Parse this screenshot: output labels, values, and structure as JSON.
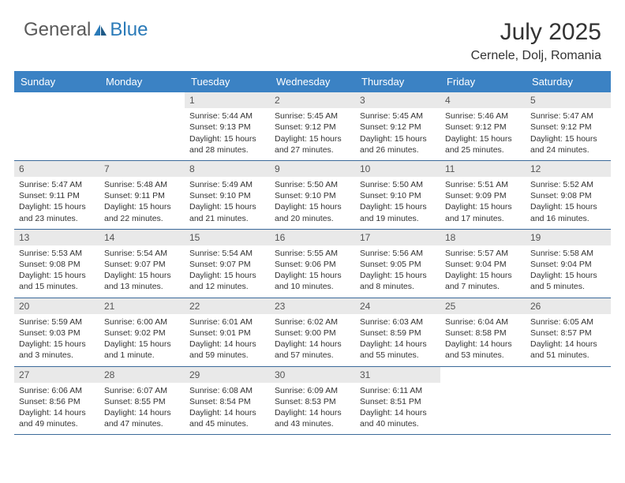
{
  "logo": {
    "general": "General",
    "blue": "Blue"
  },
  "title": "July 2025",
  "location": "Cernele, Dolj, Romania",
  "colors": {
    "header_bg": "#3b82c4",
    "header_text": "#ffffff",
    "daynum_bg": "#e9e9e9",
    "rule": "#3b6a9a",
    "logo_gray": "#5a5a5a",
    "logo_blue": "#2a7ab8"
  },
  "dayNames": [
    "Sunday",
    "Monday",
    "Tuesday",
    "Wednesday",
    "Thursday",
    "Friday",
    "Saturday"
  ],
  "weeks": [
    [
      null,
      null,
      {
        "n": "1",
        "sr": "Sunrise: 5:44 AM",
        "ss": "Sunset: 9:13 PM",
        "dl1": "Daylight: 15 hours",
        "dl2": "and 28 minutes."
      },
      {
        "n": "2",
        "sr": "Sunrise: 5:45 AM",
        "ss": "Sunset: 9:12 PM",
        "dl1": "Daylight: 15 hours",
        "dl2": "and 27 minutes."
      },
      {
        "n": "3",
        "sr": "Sunrise: 5:45 AM",
        "ss": "Sunset: 9:12 PM",
        "dl1": "Daylight: 15 hours",
        "dl2": "and 26 minutes."
      },
      {
        "n": "4",
        "sr": "Sunrise: 5:46 AM",
        "ss": "Sunset: 9:12 PM",
        "dl1": "Daylight: 15 hours",
        "dl2": "and 25 minutes."
      },
      {
        "n": "5",
        "sr": "Sunrise: 5:47 AM",
        "ss": "Sunset: 9:12 PM",
        "dl1": "Daylight: 15 hours",
        "dl2": "and 24 minutes."
      }
    ],
    [
      {
        "n": "6",
        "sr": "Sunrise: 5:47 AM",
        "ss": "Sunset: 9:11 PM",
        "dl1": "Daylight: 15 hours",
        "dl2": "and 23 minutes."
      },
      {
        "n": "7",
        "sr": "Sunrise: 5:48 AM",
        "ss": "Sunset: 9:11 PM",
        "dl1": "Daylight: 15 hours",
        "dl2": "and 22 minutes."
      },
      {
        "n": "8",
        "sr": "Sunrise: 5:49 AM",
        "ss": "Sunset: 9:10 PM",
        "dl1": "Daylight: 15 hours",
        "dl2": "and 21 minutes."
      },
      {
        "n": "9",
        "sr": "Sunrise: 5:50 AM",
        "ss": "Sunset: 9:10 PM",
        "dl1": "Daylight: 15 hours",
        "dl2": "and 20 minutes."
      },
      {
        "n": "10",
        "sr": "Sunrise: 5:50 AM",
        "ss": "Sunset: 9:10 PM",
        "dl1": "Daylight: 15 hours",
        "dl2": "and 19 minutes."
      },
      {
        "n": "11",
        "sr": "Sunrise: 5:51 AM",
        "ss": "Sunset: 9:09 PM",
        "dl1": "Daylight: 15 hours",
        "dl2": "and 17 minutes."
      },
      {
        "n": "12",
        "sr": "Sunrise: 5:52 AM",
        "ss": "Sunset: 9:08 PM",
        "dl1": "Daylight: 15 hours",
        "dl2": "and 16 minutes."
      }
    ],
    [
      {
        "n": "13",
        "sr": "Sunrise: 5:53 AM",
        "ss": "Sunset: 9:08 PM",
        "dl1": "Daylight: 15 hours",
        "dl2": "and 15 minutes."
      },
      {
        "n": "14",
        "sr": "Sunrise: 5:54 AM",
        "ss": "Sunset: 9:07 PM",
        "dl1": "Daylight: 15 hours",
        "dl2": "and 13 minutes."
      },
      {
        "n": "15",
        "sr": "Sunrise: 5:54 AM",
        "ss": "Sunset: 9:07 PM",
        "dl1": "Daylight: 15 hours",
        "dl2": "and 12 minutes."
      },
      {
        "n": "16",
        "sr": "Sunrise: 5:55 AM",
        "ss": "Sunset: 9:06 PM",
        "dl1": "Daylight: 15 hours",
        "dl2": "and 10 minutes."
      },
      {
        "n": "17",
        "sr": "Sunrise: 5:56 AM",
        "ss": "Sunset: 9:05 PM",
        "dl1": "Daylight: 15 hours",
        "dl2": "and 8 minutes."
      },
      {
        "n": "18",
        "sr": "Sunrise: 5:57 AM",
        "ss": "Sunset: 9:04 PM",
        "dl1": "Daylight: 15 hours",
        "dl2": "and 7 minutes."
      },
      {
        "n": "19",
        "sr": "Sunrise: 5:58 AM",
        "ss": "Sunset: 9:04 PM",
        "dl1": "Daylight: 15 hours",
        "dl2": "and 5 minutes."
      }
    ],
    [
      {
        "n": "20",
        "sr": "Sunrise: 5:59 AM",
        "ss": "Sunset: 9:03 PM",
        "dl1": "Daylight: 15 hours",
        "dl2": "and 3 minutes."
      },
      {
        "n": "21",
        "sr": "Sunrise: 6:00 AM",
        "ss": "Sunset: 9:02 PM",
        "dl1": "Daylight: 15 hours",
        "dl2": "and 1 minute."
      },
      {
        "n": "22",
        "sr": "Sunrise: 6:01 AM",
        "ss": "Sunset: 9:01 PM",
        "dl1": "Daylight: 14 hours",
        "dl2": "and 59 minutes."
      },
      {
        "n": "23",
        "sr": "Sunrise: 6:02 AM",
        "ss": "Sunset: 9:00 PM",
        "dl1": "Daylight: 14 hours",
        "dl2": "and 57 minutes."
      },
      {
        "n": "24",
        "sr": "Sunrise: 6:03 AM",
        "ss": "Sunset: 8:59 PM",
        "dl1": "Daylight: 14 hours",
        "dl2": "and 55 minutes."
      },
      {
        "n": "25",
        "sr": "Sunrise: 6:04 AM",
        "ss": "Sunset: 8:58 PM",
        "dl1": "Daylight: 14 hours",
        "dl2": "and 53 minutes."
      },
      {
        "n": "26",
        "sr": "Sunrise: 6:05 AM",
        "ss": "Sunset: 8:57 PM",
        "dl1": "Daylight: 14 hours",
        "dl2": "and 51 minutes."
      }
    ],
    [
      {
        "n": "27",
        "sr": "Sunrise: 6:06 AM",
        "ss": "Sunset: 8:56 PM",
        "dl1": "Daylight: 14 hours",
        "dl2": "and 49 minutes."
      },
      {
        "n": "28",
        "sr": "Sunrise: 6:07 AM",
        "ss": "Sunset: 8:55 PM",
        "dl1": "Daylight: 14 hours",
        "dl2": "and 47 minutes."
      },
      {
        "n": "29",
        "sr": "Sunrise: 6:08 AM",
        "ss": "Sunset: 8:54 PM",
        "dl1": "Daylight: 14 hours",
        "dl2": "and 45 minutes."
      },
      {
        "n": "30",
        "sr": "Sunrise: 6:09 AM",
        "ss": "Sunset: 8:53 PM",
        "dl1": "Daylight: 14 hours",
        "dl2": "and 43 minutes."
      },
      {
        "n": "31",
        "sr": "Sunrise: 6:11 AM",
        "ss": "Sunset: 8:51 PM",
        "dl1": "Daylight: 14 hours",
        "dl2": "and 40 minutes."
      },
      null,
      null
    ]
  ]
}
